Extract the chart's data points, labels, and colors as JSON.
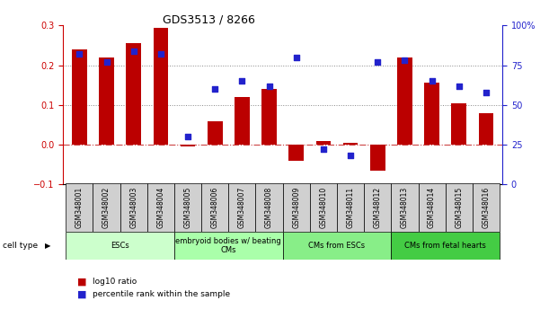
{
  "title": "GDS3513 / 8266",
  "samples": [
    "GSM348001",
    "GSM348002",
    "GSM348003",
    "GSM348004",
    "GSM348005",
    "GSM348006",
    "GSM348007",
    "GSM348008",
    "GSM348009",
    "GSM348010",
    "GSM348011",
    "GSM348012",
    "GSM348013",
    "GSM348014",
    "GSM348015",
    "GSM348016"
  ],
  "log10_ratio": [
    0.24,
    0.22,
    0.255,
    0.295,
    -0.005,
    0.06,
    0.12,
    0.14,
    -0.04,
    0.01,
    0.005,
    -0.065,
    0.22,
    0.155,
    0.105,
    0.08
  ],
  "pct_rank_right": [
    82,
    77,
    84,
    82,
    30,
    60,
    65,
    62,
    80,
    22,
    18,
    77,
    78,
    65,
    62,
    58
  ],
  "bar_color": "#bb0000",
  "dot_color": "#2222cc",
  "left_ylim": [
    -0.1,
    0.3
  ],
  "left_yticks": [
    -0.1,
    0.0,
    0.1,
    0.2,
    0.3
  ],
  "right_ylim": [
    0,
    100
  ],
  "right_yticks": [
    0,
    25,
    50,
    75,
    100
  ],
  "right_yticklabels": [
    "0",
    "25",
    "50",
    "75",
    "100%"
  ],
  "cell_groups": [
    {
      "label": "ESCs",
      "start": 0,
      "end": 4,
      "color": "#ccffcc"
    },
    {
      "label": "embryoid bodies w/ beating\nCMs",
      "start": 4,
      "end": 8,
      "color": "#aaffaa"
    },
    {
      "label": "CMs from ESCs",
      "start": 8,
      "end": 12,
      "color": "#88ee88"
    },
    {
      "label": "CMs from fetal hearts",
      "start": 12,
      "end": 16,
      "color": "#44cc44"
    }
  ],
  "legend_items": [
    {
      "label": "log10 ratio",
      "color": "#bb0000"
    },
    {
      "label": "percentile rank within the sample",
      "color": "#2222cc"
    }
  ],
  "cell_type_label": "cell type",
  "hline_color": "#cc4444",
  "grid_color": "#888888"
}
